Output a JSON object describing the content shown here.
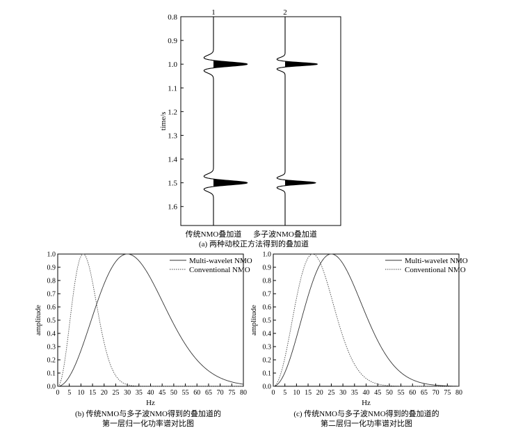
{
  "chart_data": [
    {
      "id": "a",
      "type": "line",
      "panel_type": "seismic-trace",
      "caption": "(a) 两种动校正方法得到的叠加道",
      "ylabel": "time/s",
      "ylim": [
        0.8,
        1.68
      ],
      "y_reversed": true,
      "y_ticks": [
        0.8,
        0.9,
        1.0,
        1.1,
        1.2,
        1.3,
        1.4,
        1.5,
        1.6
      ],
      "y_tick_labels": [
        "0.8",
        "0.9",
        "1.0",
        "1.1",
        "1.2",
        "1.3",
        "1.4",
        "1.5",
        "1.6"
      ],
      "traces": [
        {
          "number": "1",
          "name": "传统NMO叠加道",
          "events": [
            {
              "t": 1.0,
              "peak": 1.0,
              "half_width": 0.012,
              "side_lobe": 0.28
            },
            {
              "t": 1.5,
              "peak": 1.0,
              "half_width": 0.012,
              "side_lobe": 0.28
            }
          ]
        },
        {
          "number": "2",
          "name": "多子波NMO叠加道",
          "events": [
            {
              "t": 1.0,
              "peak": 0.95,
              "half_width": 0.009,
              "side_lobe": 0.24
            },
            {
              "t": 1.5,
              "peak": 0.9,
              "half_width": 0.009,
              "side_lobe": 0.24
            }
          ]
        }
      ]
    },
    {
      "id": "b",
      "type": "line",
      "caption": [
        "(b) 传统NMO与多子波NMO得到的叠加道的",
        "第一层归一化功率谱对比图"
      ],
      "xlabel": "Hz",
      "ylabel": "amplitude",
      "xlim": [
        0,
        80
      ],
      "ylim": [
        0,
        1.0
      ],
      "x_ticks": [
        0,
        5,
        10,
        15,
        20,
        25,
        30,
        35,
        40,
        45,
        50,
        55,
        60,
        65,
        70,
        75,
        80
      ],
      "x_tick_labels": [
        "0",
        "5",
        "10",
        "15",
        "20",
        "25",
        "30",
        "35",
        "40",
        "45",
        "50",
        "55",
        "60",
        "65",
        "70",
        "75",
        "80"
      ],
      "y_ticks": [
        0,
        0.1,
        0.2,
        0.3,
        0.4,
        0.5,
        0.6,
        0.7,
        0.8,
        0.9,
        1.0
      ],
      "y_tick_labels": [
        "0.0",
        "0.1",
        "0.2",
        "0.3",
        "0.4",
        "0.5",
        "0.6",
        "0.7",
        "0.8",
        "0.9",
        "1.0"
      ],
      "legend_position": "top-right",
      "series": [
        {
          "name": "Multi-wavelet NMO",
          "style": "solid",
          "peak_hz": 30,
          "x": [
            0,
            5,
            10,
            15,
            20,
            25,
            30,
            35,
            40,
            45,
            50,
            55,
            60,
            65,
            70,
            75,
            80
          ],
          "values": [
            0,
            0.06,
            0.23,
            0.49,
            0.76,
            0.94,
            1.0,
            0.95,
            0.82,
            0.64,
            0.46,
            0.3,
            0.18,
            0.1,
            0.05,
            0.03,
            0.01
          ]
        },
        {
          "name": "Conventional NMO",
          "style": "dotted",
          "peak_hz": 11,
          "x": [
            0,
            5,
            10,
            15,
            20,
            25,
            30,
            35,
            40,
            45,
            50,
            55,
            60,
            65,
            70,
            75,
            80
          ],
          "values": [
            0,
            0.42,
            0.98,
            0.91,
            0.71,
            0.51,
            0.34,
            0.21,
            0.12,
            0.07,
            0.04,
            0.02,
            0.01,
            0.005,
            0,
            0,
            0
          ]
        }
      ]
    },
    {
      "id": "c",
      "type": "line",
      "caption": [
        "(c) 传统NMO与多子波NMO得到的叠加道的",
        "第二层归一化功率谱对比图"
      ],
      "xlabel": "Hz",
      "ylabel": "amplitude",
      "xlim": [
        0,
        80
      ],
      "ylim": [
        0,
        1.0
      ],
      "x_ticks": [
        0,
        5,
        10,
        15,
        20,
        25,
        30,
        35,
        40,
        45,
        50,
        55,
        60,
        65,
        70,
        75,
        80
      ],
      "x_tick_labels": [
        "0",
        "5",
        "10",
        "15",
        "20",
        "25",
        "30",
        "35",
        "40",
        "45",
        "50",
        "55",
        "60",
        "65",
        "70",
        "75",
        "80"
      ],
      "y_ticks": [
        0,
        0.1,
        0.2,
        0.3,
        0.4,
        0.5,
        0.6,
        0.7,
        0.8,
        0.9,
        1.0
      ],
      "y_tick_labels": [
        "0.0",
        "0.1",
        "0.2",
        "0.3",
        "0.4",
        "0.5",
        "0.6",
        "0.7",
        "0.8",
        "0.9",
        "1.0"
      ],
      "legend_position": "top-right",
      "series": [
        {
          "name": "Multi-wavelet NMO",
          "style": "solid",
          "peak_hz": 25,
          "x": [
            0,
            5,
            10,
            15,
            20,
            25,
            30,
            35,
            40,
            45,
            50,
            55,
            60,
            65,
            70,
            75,
            80
          ],
          "values": [
            0,
            0.08,
            0.33,
            0.67,
            0.92,
            1.0,
            0.91,
            0.72,
            0.5,
            0.31,
            0.17,
            0.08,
            0.03,
            0.01,
            0,
            0,
            0
          ]
        },
        {
          "name": "Conventional NMO",
          "style": "dotted",
          "peak_hz": 17,
          "x": [
            0,
            5,
            10,
            15,
            20,
            25,
            30,
            35,
            40,
            45,
            50,
            55,
            60,
            65,
            70,
            75,
            80
          ],
          "values": [
            0,
            0.23,
            0.71,
            0.99,
            0.93,
            0.71,
            0.46,
            0.26,
            0.13,
            0.06,
            0.02,
            0.01,
            0,
            0,
            0,
            0,
            0
          ]
        }
      ]
    }
  ]
}
